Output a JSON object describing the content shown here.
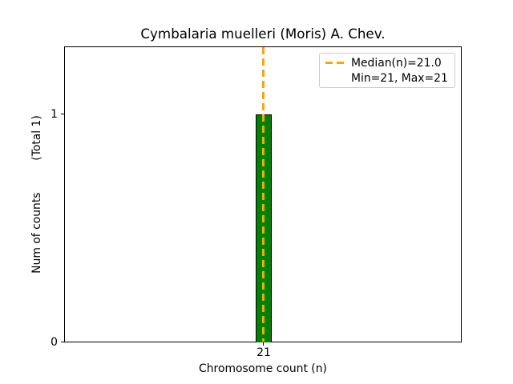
{
  "chart_data": {
    "type": "bar",
    "title": "Cymbalaria muelleri (Moris) A. Chev.",
    "xlabel": "Chromosome count (n)",
    "ylabel": "Num of counts         (Total 1)",
    "categories": [
      21
    ],
    "values": [
      1
    ],
    "total_counts": 1,
    "median": 21.0,
    "min": 21,
    "max": 21,
    "xticks": [
      "21"
    ],
    "yticks": [
      "0",
      "1"
    ],
    "ylim": [
      0,
      1.3
    ],
    "grid": false,
    "legend": {
      "position": "upper right",
      "entries": [
        {
          "label": "Median(n)=21.0",
          "marker": "dashed-line",
          "color": "#FFA500"
        },
        {
          "label": "Min=21, Max=21",
          "marker": "none"
        }
      ]
    },
    "colors": {
      "bar_fill": "#008000",
      "bar_edge": "#000000",
      "median_line": "#FFA500",
      "axes_frame": "#000000",
      "legend_border": "#cccccc",
      "text": "#000000",
      "background": "#ffffff"
    }
  }
}
